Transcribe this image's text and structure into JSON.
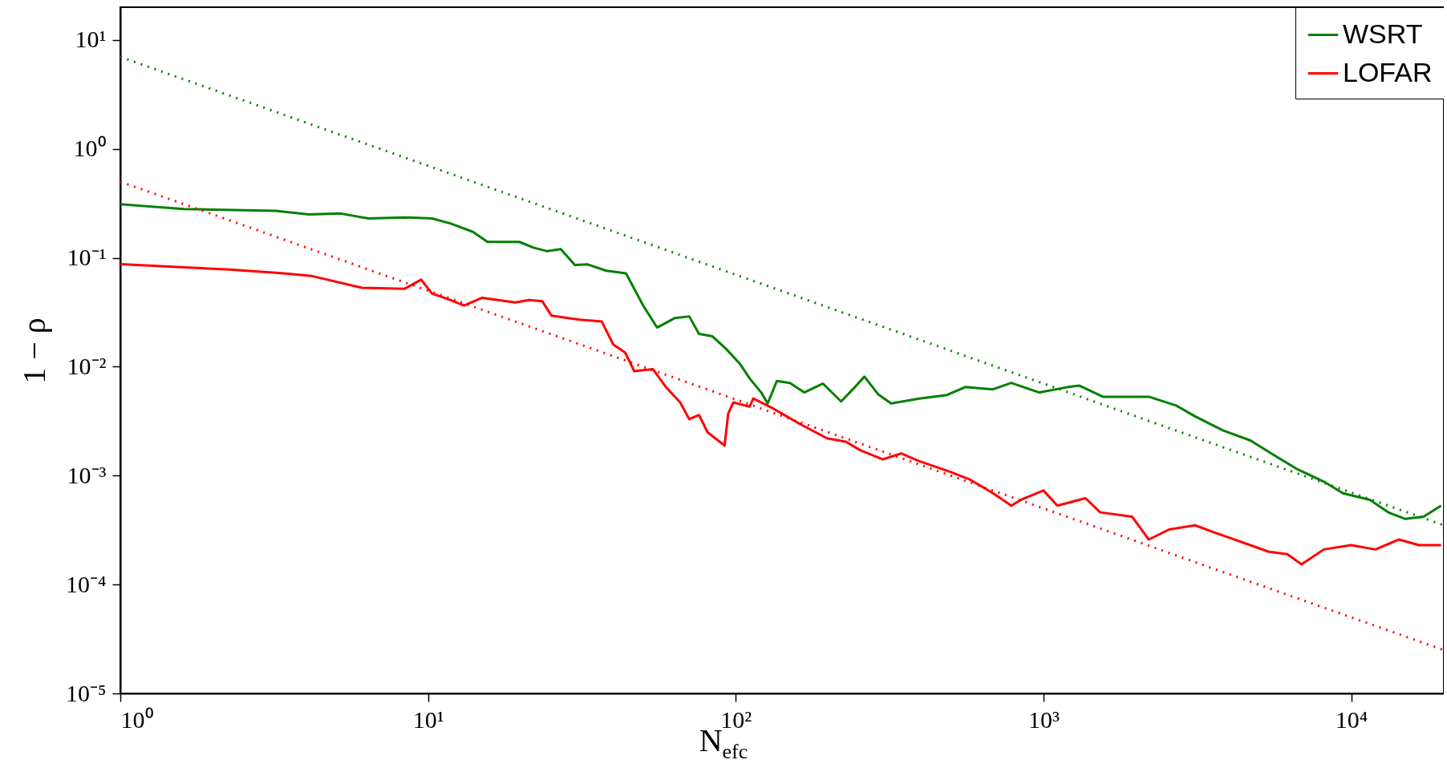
{
  "chart_data": {
    "type": "line",
    "xlabel": "N$_{efc}$",
    "ylabel": "1 − ρ",
    "log": "xy",
    "grid": false,
    "legend": "top right",
    "marker": "none",
    "xlim": [
      1,
      20000
    ],
    "ylim": [
      1e-05,
      20
    ],
    "xticks": [
      {
        "value": 1,
        "label": "10⁰"
      },
      {
        "value": 10,
        "label": "10¹"
      },
      {
        "value": 100,
        "label": "10²"
      },
      {
        "value": 1000,
        "label": "10³"
      },
      {
        "value": 10000,
        "label": "10⁴"
      }
    ],
    "yticks": [
      {
        "value": 1e-05,
        "label": "10⁻⁵"
      },
      {
        "value": 0.0001,
        "label": "10⁻⁴"
      },
      {
        "value": 0.001,
        "label": "10⁻³"
      },
      {
        "value": 0.01,
        "label": "10⁻²"
      },
      {
        "value": 0.1,
        "label": "10⁻¹"
      },
      {
        "value": 1,
        "label": "10⁰"
      },
      {
        "value": 10,
        "label": "10¹"
      }
    ],
    "series": [
      {
        "name": "WSRT",
        "color": "#008000",
        "line_style": "solid",
        "x": [
          1,
          1.61,
          3.2,
          4.1,
          5.2,
          6.4,
          8.4,
          10.3,
          11.8,
          14,
          15.6,
          19.8,
          22,
          24.4,
          27,
          30,
          33,
          38,
          44,
          50,
          55.5,
          63.5,
          70.6,
          76,
          84,
          93,
          103,
          111,
          121,
          127,
          136,
          150,
          167,
          192,
          220,
          244,
          262,
          290,
          320,
          394,
          486,
          557,
          685,
          786,
          970,
          1200,
          1310,
          1560,
          2200,
          2700,
          3110,
          3830,
          4710,
          5400,
          6630,
          8150,
          9400,
          11500,
          13200,
          15000,
          17200,
          19600
        ],
        "values": [
          0.31,
          0.28,
          0.27,
          0.25,
          0.255,
          0.23,
          0.235,
          0.23,
          0.207,
          0.173,
          0.14,
          0.14,
          0.124,
          0.115,
          0.12,
          0.086,
          0.087,
          0.076,
          0.072,
          0.0365,
          0.0229,
          0.028,
          0.029,
          0.02,
          0.019,
          0.0146,
          0.0107,
          0.0078,
          0.0058,
          0.0046,
          0.0074,
          0.0071,
          0.0058,
          0.007,
          0.0048,
          0.0065,
          0.0081,
          0.0056,
          0.0046,
          0.0051,
          0.0055,
          0.0065,
          0.0062,
          0.0071,
          0.0058,
          0.0065,
          0.0067,
          0.0053,
          0.0053,
          0.0044,
          0.0035,
          0.0026,
          0.0021,
          0.00165,
          0.00116,
          0.00088,
          0.00069,
          0.0006,
          0.00046,
          0.0004,
          0.00042,
          0.00053
        ]
      },
      {
        "name": "LOFAR",
        "color": "#ff0000",
        "line_style": "solid",
        "x": [
          1,
          2.27,
          3.4,
          4.2,
          6.1,
          8.4,
          9.5,
          10.3,
          11.8,
          13.1,
          15,
          19.2,
          21.3,
          23.5,
          25.2,
          31,
          36.7,
          40,
          43.7,
          46.8,
          53.8,
          59.6,
          66,
          70.6,
          76,
          81,
          92,
          94.5,
          98.2,
          111,
          114,
          131,
          161,
          198,
          228,
          254,
          301,
          345,
          394,
          486,
          577,
          686,
          786,
          845,
          1000,
          1110,
          1370,
          1530,
          1940,
          2200,
          2560,
          3110,
          3600,
          4430,
          5400,
          6200,
          6900,
          8150,
          10000,
          12000,
          14300,
          16600,
          19600
        ],
        "values": [
          0.0875,
          0.078,
          0.072,
          0.068,
          0.053,
          0.052,
          0.063,
          0.047,
          0.041,
          0.0365,
          0.043,
          0.039,
          0.041,
          0.04,
          0.0294,
          0.027,
          0.026,
          0.016,
          0.0135,
          0.0091,
          0.0095,
          0.0064,
          0.0047,
          0.0033,
          0.0036,
          0.0025,
          0.00189,
          0.0037,
          0.0047,
          0.0043,
          0.0051,
          0.0042,
          0.003,
          0.0022,
          0.00205,
          0.00171,
          0.00141,
          0.0016,
          0.00136,
          0.00111,
          0.00092,
          0.00069,
          0.00053,
          0.0006,
          0.00073,
          0.00053,
          0.00062,
          0.00046,
          0.00042,
          0.000259,
          0.00032,
          0.00035,
          0.0003,
          0.000244,
          0.0002,
          0.00019,
          0.000153,
          0.00021,
          0.00023,
          0.00021,
          0.000259,
          0.00023,
          0.00023
        ]
      },
      {
        "type": "line",
        "color": "#008000",
        "line_style": "dotted",
        "x": [
          1,
          20000
        ],
        "values": [
          7,
          0.00035
        ]
      },
      {
        "type": "line",
        "color": "#ff0000",
        "line_style": "dotted",
        "x": [
          1,
          20000
        ],
        "values": [
          0.5,
          2.5e-05
        ]
      }
    ]
  }
}
